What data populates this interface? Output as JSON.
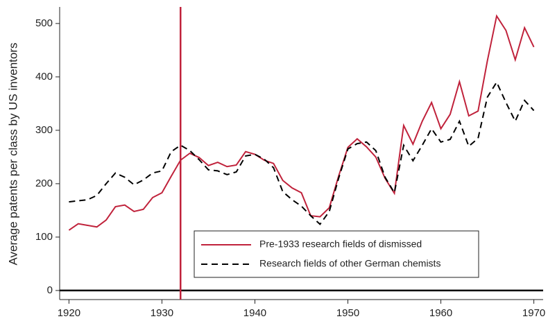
{
  "chart_data": {
    "type": "line",
    "y_label": "Average patents per class by US inventors",
    "x": [
      1920,
      1921,
      1922,
      1923,
      1924,
      1925,
      1926,
      1927,
      1928,
      1929,
      1930,
      1931,
      1932,
      1933,
      1934,
      1935,
      1936,
      1937,
      1938,
      1939,
      1940,
      1941,
      1942,
      1943,
      1944,
      1945,
      1946,
      1947,
      1948,
      1949,
      1950,
      1951,
      1952,
      1953,
      1954,
      1955,
      1956,
      1957,
      1958,
      1959,
      1960,
      1961,
      1962,
      1963,
      1964,
      1965,
      1966,
      1967,
      1968,
      1969,
      1970
    ],
    "series": [
      {
        "name": "Pre-1933 research fields of dismissed",
        "color": "#c0223b",
        "dash": false,
        "values": [
          113,
          125,
          122,
          119,
          132,
          157,
          160,
          148,
          152,
          174,
          183,
          214,
          244,
          257,
          249,
          234,
          240,
          232,
          235,
          260,
          255,
          244,
          238,
          206,
          192,
          183,
          140,
          138,
          155,
          214,
          268,
          284,
          269,
          250,
          210,
          182,
          309,
          274,
          317,
          352,
          303,
          330,
          391,
          327,
          336,
          430,
          514,
          487,
          432,
          492,
          456
        ]
      },
      {
        "name": "Research fields of other German chemists",
        "color": "#000000",
        "dash": true,
        "values": [
          166,
          168,
          170,
          178,
          200,
          220,
          212,
          198,
          207,
          220,
          224,
          260,
          272,
          262,
          245,
          226,
          224,
          217,
          222,
          252,
          255,
          246,
          230,
          185,
          170,
          158,
          140,
          124,
          148,
          210,
          265,
          275,
          278,
          262,
          212,
          183,
          272,
          243,
          272,
          303,
          278,
          283,
          317,
          270,
          285,
          362,
          390,
          352,
          317,
          356,
          337
        ]
      }
    ],
    "xlim": [
      1919,
      1971
    ],
    "ylim": [
      -17,
      531
    ],
    "xticks": [
      1920,
      1930,
      1940,
      1950,
      1960,
      1970
    ],
    "yticks": [
      0,
      100,
      200,
      300,
      400,
      500
    ],
    "hline": 0,
    "hline_color": "#000000",
    "vline": 1932,
    "vline_color": "#c0223b",
    "legend": "lower center",
    "grid": false
  }
}
